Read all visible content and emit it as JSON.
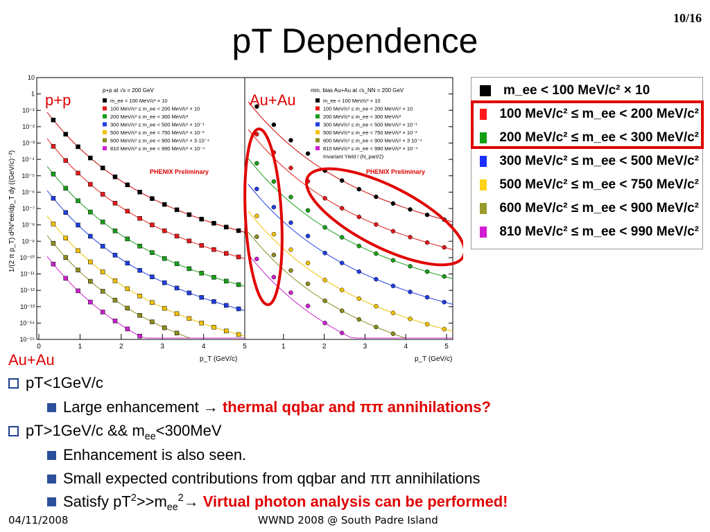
{
  "slide": {
    "number": "10/16",
    "title": "pT Dependence",
    "footer_date": "04/11/2008",
    "footer_event": "WWND 2008 @ South Padre Island"
  },
  "figure": {
    "ylabel": "1/(2 π p_T) d²N^ee/dp_T dy ((GeV/c)⁻²)",
    "xlabel": "p_T (GeV/c)",
    "ytick_labels": [
      "10",
      "1",
      "10⁻¹",
      "10⁻²",
      "10⁻³",
      "10⁻⁴",
      "10⁻⁵",
      "10⁻⁶",
      "10⁻⁷",
      "10⁻⁸",
      "10⁻⁹",
      "10⁻¹⁰",
      "10⁻¹¹",
      "10⁻¹²",
      "10⁻¹³",
      "10⁻¹⁴",
      "10⁻¹⁵"
    ],
    "left_panel": {
      "tag": "p+p",
      "header": "p+p at √s = 200 GeV",
      "legend": [
        "m_ee < 100 MeV/c² × 10",
        "100 MeV/c² ≤ m_ee < 200 MeV/c² × 10",
        "200 MeV/c² ≤ m_ee < 300 MeV/c²",
        "300 MeV/c² ≤ m_ee < 500 MeV/c² × 10⁻¹",
        "500 MeV/c² ≤ m_ee < 750 MeV/c² × 10⁻²",
        "600 MeV/c² ≤ m_ee < 900 MeV/c² × 3·10⁻⁴",
        "810 MeV/c² ≤ m_ee < 990 MeV/c² × 10⁻⁴"
      ],
      "prelim": "PHENIX Preliminary",
      "xticks": [
        "0",
        "1",
        "2",
        "3",
        "4",
        "5"
      ]
    },
    "right_panel": {
      "tag": "Au+Au",
      "header": "min. bias Au+Au at √s_NN = 200 GeV",
      "legend": [
        "m_ee < 100 MeV/c² × 10",
        "100 MeV/c² ≤ m_ee < 200 MeV/c² × 10",
        "200 MeV/c² ≤ m_ee < 300 MeV/c²",
        "300 MeV/c² ≤ m_ee < 500 MeV/c² × 10⁻¹",
        "500 MeV/c² ≤ m_ee < 750 MeV/c² × 10⁻²",
        "600 MeV/c² ≤ m_ee < 900 MeV/c² × 3 10⁻⁴",
        "810 MeV/c² ≤ m_ee < 990 MeV/c² × 10⁻⁴",
        "Invariant Yield / (N_part/2)"
      ],
      "prelim": "PHENIX Preliminary",
      "xticks": [
        "1",
        "2",
        "3",
        "4",
        "5"
      ]
    },
    "series_colors": [
      "#000000",
      "#e41a1c",
      "#1a9e1a",
      "#1f3fe0",
      "#f2c200",
      "#8c8c1e",
      "#cc22cc"
    ]
  },
  "big_legend": {
    "rows": [
      {
        "label": "m_ee < 100 MeV/c² × 10",
        "color": "#000000"
      },
      {
        "label": "100 MeV/c² ≤ m_ee < 200 MeV/c²",
        "color": "#ff1a1a"
      },
      {
        "label": "200 MeV/c² ≤ m_ee < 300 MeV/c²",
        "color": "#12a012"
      },
      {
        "label": "300 MeV/c² ≤ m_ee < 500 MeV/c²",
        "color": "#1a2fff"
      },
      {
        "label": "500 MeV/c² ≤ m_ee < 750 MeV/c²",
        "color": "#ffd21a"
      },
      {
        "label": "600 MeV/c² ≤ m_ee < 900 MeV/c²",
        "color": "#9a9a2a"
      },
      {
        "label": "810 MeV/c² ≤ m_ee < 990 MeV/c²",
        "color": "#d21ad2"
      }
    ]
  },
  "text": {
    "section": "Au+Au",
    "b1": "pT<1GeV/c",
    "b1a_plain": "Large enhancement →",
    "b1a_red": "thermal qqbar and ππ annihilations?",
    "b2_a": "pT>1GeV/c && m",
    "b2_sub": "ee",
    "b2_b": "<300MeV",
    "b2a": "Enhancement is also seen.",
    "b2b": "Small expected contributions from qqbar and ππ annihilations",
    "b2c_a": "Satisfy pT",
    "b2c_sup1": "2",
    "b2c_b": ">>m",
    "b2c_sub": "ee",
    "b2c_sup2": "2",
    "b2c_arrow": "→",
    "b2c_red": "Virtual photon analysis can be performed!"
  }
}
